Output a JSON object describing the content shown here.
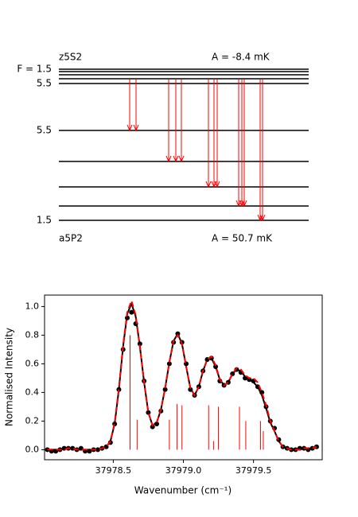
{
  "diagram": {
    "upper": {
      "name": "z5S2",
      "A": "A = -8.4 mK",
      "F_top": "F = 1.5",
      "F_bottom": "5.5"
    },
    "lower": {
      "name": "a5P2",
      "A": "A = 50.7 mK",
      "F_top": "5.5",
      "F_bottom": "1.5"
    }
  },
  "chart_data": {
    "type": "line",
    "xlabel": "Wavenumber (cm⁻¹)",
    "ylabel": "Normalised Intensity",
    "xlim": [
      37978.01,
      37979.99
    ],
    "ylim": [
      -0.07,
      1.08
    ],
    "xticks": [
      37978.5,
      {
        "value": 37979.0,
        "label": "37979.0"
      },
      37979.5
    ],
    "yticks": [
      {
        "value": 0,
        "label": "0.0"
      },
      0.2,
      0.4,
      0.6,
      0.8,
      {
        "value": 1.0,
        "label": "1.0"
      }
    ],
    "x": [
      37978.03,
      37978.06,
      37978.09,
      37978.12,
      37978.15,
      37978.18,
      37978.21,
      37978.24,
      37978.27,
      37978.3,
      37978.33,
      37978.36,
      37978.39,
      37978.42,
      37978.45,
      37978.48,
      37978.51,
      37978.54,
      37978.57,
      37978.6,
      37978.63,
      37978.66,
      37978.69,
      37978.72,
      37978.75,
      37978.78,
      37978.81,
      37978.84,
      37978.87,
      37978.9,
      37978.93,
      37978.96,
      37978.99,
      37979.02,
      37979.05,
      37979.08,
      37979.11,
      37979.14,
      37979.17,
      37979.2,
      37979.23,
      37979.26,
      37979.29,
      37979.32,
      37979.35,
      37979.38,
      37979.41,
      37979.44,
      37979.47,
      37979.5,
      37979.53,
      37979.56,
      37979.59,
      37979.62,
      37979.65,
      37979.68,
      37979.71,
      37979.74,
      37979.77,
      37979.8,
      37979.83,
      37979.86,
      37979.89,
      37979.92,
      37979.95
    ],
    "series": [
      {
        "color": "#000000",
        "marker": true,
        "values": [
          0.0,
          -0.01,
          -0.01,
          0.0,
          0.01,
          0.01,
          0.01,
          0.0,
          0.01,
          -0.01,
          -0.01,
          0.0,
          0.0,
          0.01,
          0.02,
          0.05,
          0.18,
          0.42,
          0.7,
          0.92,
          0.96,
          0.88,
          0.74,
          0.48,
          0.26,
          0.16,
          0.18,
          0.27,
          0.42,
          0.6,
          0.75,
          0.81,
          0.75,
          0.6,
          0.42,
          0.38,
          0.44,
          0.55,
          0.63,
          0.64,
          0.58,
          0.48,
          0.45,
          0.47,
          0.53,
          0.56,
          0.54,
          0.5,
          0.49,
          0.48,
          0.44,
          0.4,
          0.3,
          0.2,
          0.15,
          0.07,
          0.02,
          0.01,
          0.0,
          0.0,
          0.01,
          0.01,
          0.0,
          0.01,
          0.02
        ]
      },
      {
        "color": "#000000",
        "values": [
          0,
          0,
          0,
          0,
          0.01,
          0.01,
          0.01,
          0,
          0,
          0,
          0,
          0,
          0,
          0.01,
          0.02,
          0.06,
          0.18,
          0.42,
          0.72,
          0.95,
          1.02,
          0.93,
          0.72,
          0.47,
          0.26,
          0.17,
          0.19,
          0.28,
          0.43,
          0.61,
          0.76,
          0.81,
          0.74,
          0.58,
          0.43,
          0.38,
          0.44,
          0.55,
          0.63,
          0.64,
          0.58,
          0.49,
          0.45,
          0.47,
          0.53,
          0.56,
          0.55,
          0.51,
          0.49,
          0.47,
          0.44,
          0.38,
          0.29,
          0.19,
          0.13,
          0.06,
          0.02,
          0.01,
          0,
          0,
          0,
          0.01,
          0.01,
          0.01,
          0.02
        ]
      },
      {
        "color": "#ff0000",
        "dashed": true,
        "values": [
          0,
          0,
          0,
          0,
          0,
          0.01,
          0.01,
          0,
          0,
          0,
          0,
          0,
          0,
          0.01,
          0.02,
          0.06,
          0.19,
          0.43,
          0.73,
          0.96,
          1.04,
          0.94,
          0.72,
          0.47,
          0.26,
          0.17,
          0.19,
          0.28,
          0.43,
          0.61,
          0.76,
          0.8,
          0.74,
          0.58,
          0.43,
          0.38,
          0.44,
          0.55,
          0.63,
          0.65,
          0.59,
          0.49,
          0.45,
          0.47,
          0.53,
          0.57,
          0.56,
          0.52,
          0.5,
          0.5,
          0.47,
          0.4,
          0.31,
          0.2,
          0.13,
          0.06,
          0.02,
          0.01,
          0,
          0,
          0,
          0.01,
          0.01,
          0.01,
          0.02
        ]
      }
    ],
    "sticks": {
      "color": "#ff0000",
      "x": [
        37978.62,
        37978.67,
        37978.9,
        37978.955,
        37978.99,
        37979.18,
        37979.215,
        37979.25,
        37979.4,
        37979.445,
        37979.55,
        37979.57
      ],
      "values": [
        0.8,
        0.21,
        0.21,
        0.32,
        0.31,
        0.31,
        0.06,
        0.3,
        0.3,
        0.2,
        0.2,
        0.13
      ]
    }
  }
}
